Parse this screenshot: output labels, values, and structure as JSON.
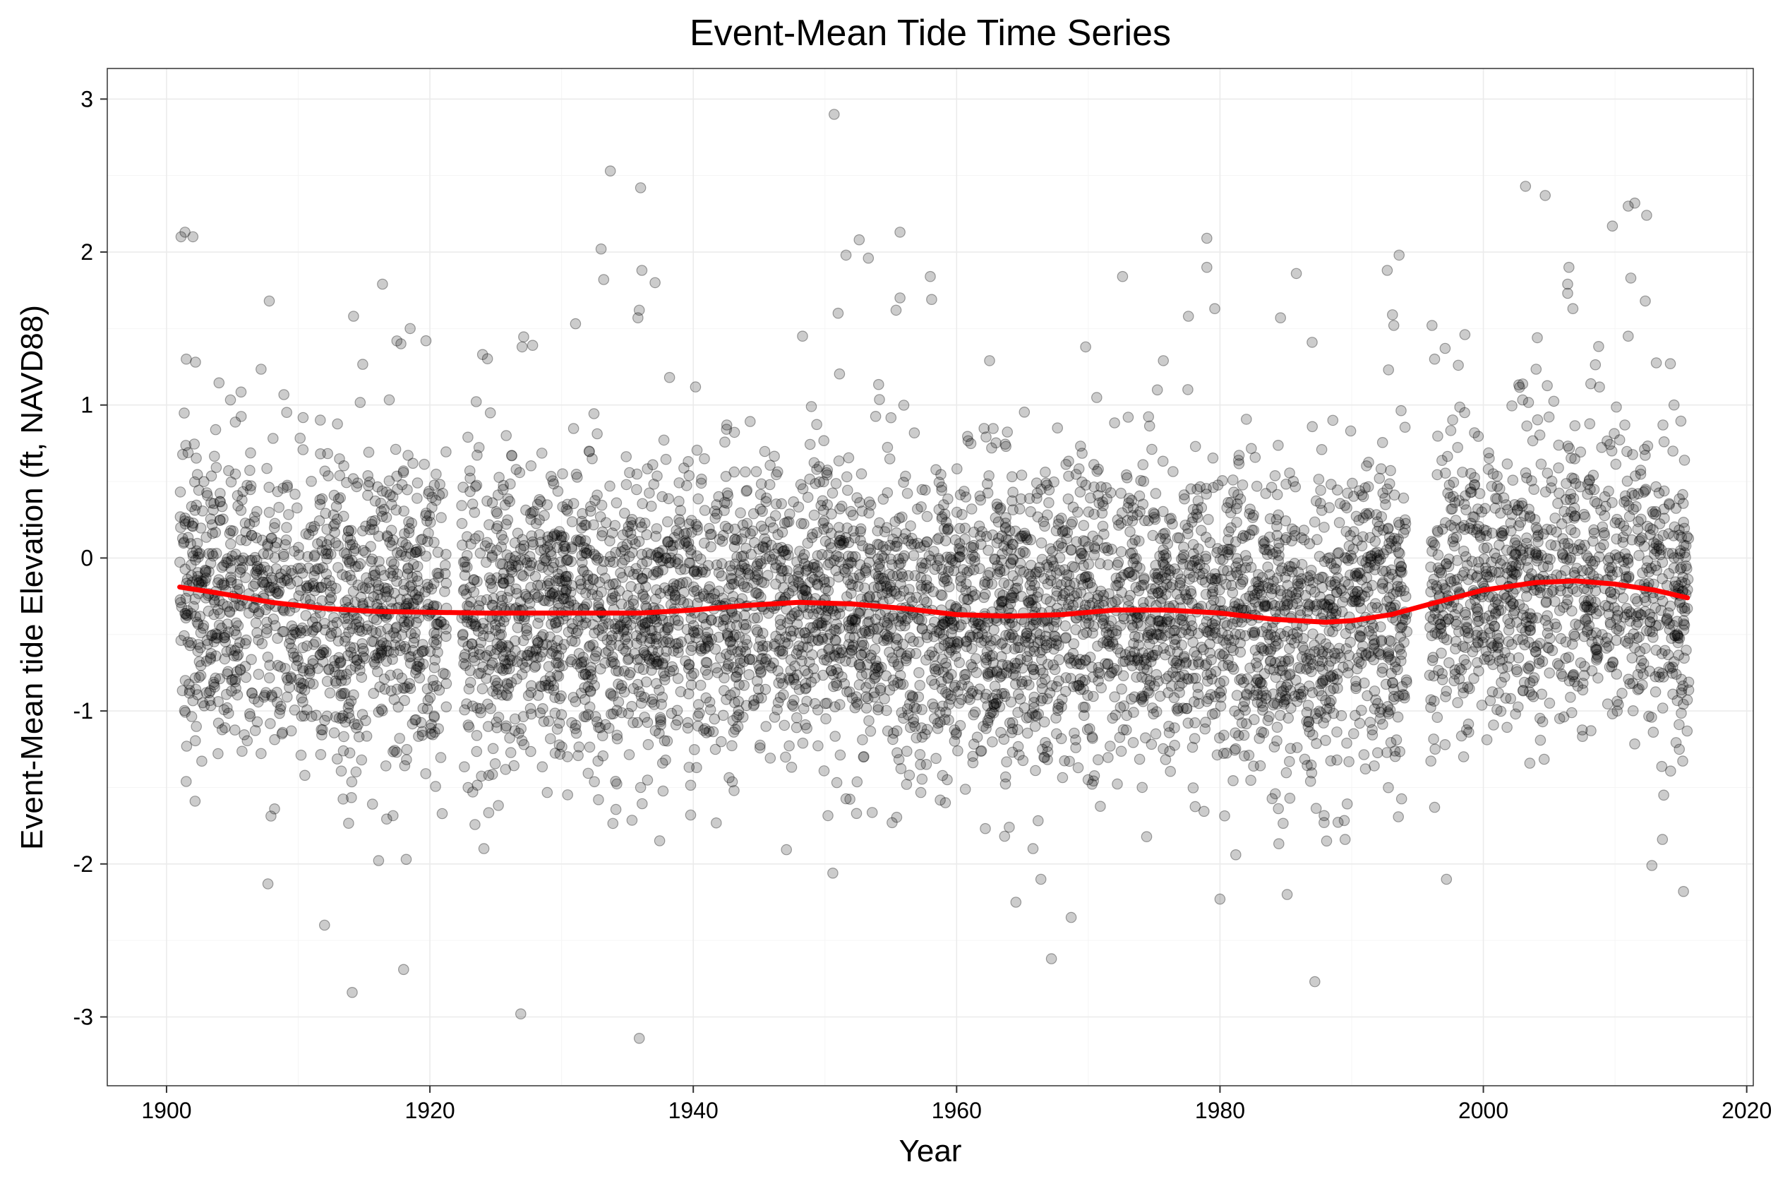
{
  "chart_data": {
    "type": "scatter",
    "title": "Event-Mean Tide Time Series",
    "xlabel": "Year",
    "ylabel": "Event-Mean tide Elevation (ft, NAVD88)",
    "xlim": [
      1895.5,
      2020.5
    ],
    "ylim": [
      -3.45,
      3.2
    ],
    "x_ticks": [
      1900,
      1920,
      1940,
      1960,
      1980,
      2000,
      2020
    ],
    "y_ticks": [
      -3,
      -2,
      -1,
      0,
      1,
      2,
      3
    ],
    "x_tick_labels": [
      "1900",
      "1920",
      "1940",
      "1960",
      "1980",
      "2000",
      "2020"
    ],
    "y_tick_labels": [
      "-3",
      "-2",
      "-1",
      "0",
      "1",
      "2",
      "3"
    ],
    "grid": true,
    "legend": "none",
    "colors": {
      "points": "#000000",
      "trend": "#ff0000",
      "panel": "#ffffff",
      "grid": "#ebebeb",
      "frame": "#333333"
    },
    "series": [
      {
        "kind": "points",
        "values": [
          [
            1901.1,
            2.1
          ],
          [
            1901.4,
            2.13
          ],
          [
            1902.0,
            2.1
          ],
          [
            1901.5,
            1.3
          ],
          [
            1902.2,
            1.28
          ],
          [
            1907.8,
            1.68
          ],
          [
            1914.2,
            1.58
          ],
          [
            1916.4,
            1.79
          ],
          [
            1912.0,
            -2.4
          ],
          [
            1914.1,
            -2.84
          ],
          [
            1907.7,
            -2.13
          ],
          [
            1918.2,
            -1.97
          ],
          [
            1918.0,
            -2.69
          ],
          [
            1919.7,
            1.42
          ],
          [
            1918.5,
            1.5
          ],
          [
            1917.8,
            1.4
          ],
          [
            1927.0,
            1.38
          ],
          [
            1927.8,
            1.39
          ],
          [
            1926.9,
            -2.98
          ],
          [
            1924.0,
            1.33
          ],
          [
            1922.9,
            -1.5
          ],
          [
            1924.1,
            -1.9
          ],
          [
            1933.0,
            2.02
          ],
          [
            1933.2,
            1.82
          ],
          [
            1933.7,
            2.53
          ],
          [
            1936.0,
            2.42
          ],
          [
            1936.1,
            1.88
          ],
          [
            1937.1,
            1.8
          ],
          [
            1935.9,
            1.62
          ],
          [
            1935.8,
            1.57
          ],
          [
            1935.9,
            -3.14
          ],
          [
            1934.1,
            -1.46
          ],
          [
            1936.0,
            -1.5
          ],
          [
            1932.8,
            -1.58
          ],
          [
            1938.2,
            1.18
          ],
          [
            1939.8,
            -1.68
          ],
          [
            1948.3,
            1.45
          ],
          [
            1950.7,
            2.9
          ],
          [
            1951.6,
            1.98
          ],
          [
            1952.6,
            2.08
          ],
          [
            1953.3,
            1.96
          ],
          [
            1955.7,
            2.13
          ],
          [
            1955.7,
            1.7
          ],
          [
            1955.4,
            1.62
          ],
          [
            1958.0,
            1.84
          ],
          [
            1958.1,
            1.69
          ],
          [
            1951.0,
            1.6
          ],
          [
            1950.6,
            -2.06
          ],
          [
            1952.4,
            -1.67
          ],
          [
            1956.2,
            -1.48
          ],
          [
            1955.1,
            -1.73
          ],
          [
            1962.5,
            1.29
          ],
          [
            1964.5,
            -2.25
          ],
          [
            1965.8,
            -1.9
          ],
          [
            1966.4,
            -2.1
          ],
          [
            1967.2,
            -2.62
          ],
          [
            1968.7,
            -2.35
          ],
          [
            1964.0,
            -1.76
          ],
          [
            1972.6,
            1.84
          ],
          [
            1969.8,
            1.38
          ],
          [
            1975.7,
            1.29
          ],
          [
            1977.6,
            1.58
          ],
          [
            1979.0,
            2.09
          ],
          [
            1979.0,
            1.9
          ],
          [
            1979.6,
            1.63
          ],
          [
            1980.0,
            -2.23
          ],
          [
            1981.2,
            -1.94
          ],
          [
            1984.6,
            1.57
          ],
          [
            1985.8,
            1.86
          ],
          [
            1985.1,
            -2.2
          ],
          [
            1987.0,
            1.41
          ],
          [
            1987.2,
            -2.77
          ],
          [
            1988.1,
            -1.85
          ],
          [
            1989.5,
            -1.84
          ],
          [
            1992.7,
            1.88
          ],
          [
            1993.6,
            1.98
          ],
          [
            1993.1,
            1.59
          ],
          [
            1993.2,
            1.52
          ],
          [
            1992.8,
            1.23
          ],
          [
            1996.1,
            1.52
          ],
          [
            1996.3,
            1.3
          ],
          [
            1996.3,
            -1.63
          ],
          [
            1997.2,
            -2.1
          ],
          [
            1997.1,
            1.37
          ],
          [
            1998.1,
            1.26
          ],
          [
            1998.6,
            1.46
          ],
          [
            2003.2,
            2.43
          ],
          [
            2004.7,
            2.37
          ],
          [
            2006.5,
            1.9
          ],
          [
            2006.4,
            1.79
          ],
          [
            2006.4,
            1.73
          ],
          [
            2006.8,
            1.63
          ],
          [
            2004.1,
            1.44
          ],
          [
            2009.8,
            2.17
          ],
          [
            2011.0,
            2.3
          ],
          [
            2011.5,
            2.32
          ],
          [
            2012.4,
            2.24
          ],
          [
            2012.3,
            1.68
          ],
          [
            2011.2,
            1.83
          ],
          [
            2011.0,
            1.45
          ],
          [
            2012.8,
            -2.01
          ],
          [
            2013.6,
            -1.84
          ],
          [
            2014.2,
            1.27
          ],
          [
            2015.2,
            -2.18
          ],
          [
            2013.7,
            -1.55
          ]
        ]
      },
      {
        "kind": "trend",
        "x": [
          1901,
          1904,
          1908,
          1912,
          1916,
          1920,
          1924,
          1928,
          1932,
          1936,
          1940,
          1944,
          1948,
          1952,
          1956,
          1960,
          1964,
          1968,
          1972,
          1976,
          1980,
          1984,
          1988,
          1990,
          1993,
          1996,
          2000,
          2004,
          2007,
          2010,
          2013,
          2015.5
        ],
        "y": [
          -0.19,
          -0.23,
          -0.29,
          -0.33,
          -0.35,
          -0.355,
          -0.36,
          -0.36,
          -0.36,
          -0.36,
          -0.34,
          -0.31,
          -0.29,
          -0.3,
          -0.33,
          -0.37,
          -0.38,
          -0.37,
          -0.34,
          -0.34,
          -0.36,
          -0.4,
          -0.42,
          -0.41,
          -0.37,
          -0.3,
          -0.21,
          -0.16,
          -0.15,
          -0.17,
          -0.21,
          -0.26
        ]
      }
    ]
  }
}
